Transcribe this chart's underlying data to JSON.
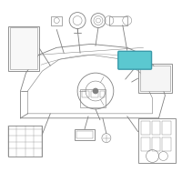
{
  "bg_color": "#ffffff",
  "line_color": "#808080",
  "dash_color": "#5a5a5a",
  "highlight_fill": "#5bc8d0",
  "highlight_edge": "#3a9aaa",
  "fig_width": 2.0,
  "fig_height": 2.0,
  "dpi": 100
}
